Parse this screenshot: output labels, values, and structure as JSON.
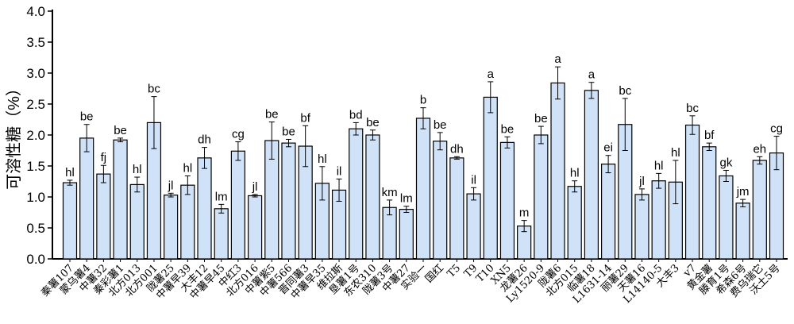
{
  "chart_data": {
    "type": "bar",
    "title": "",
    "xlabel": "",
    "ylabel": "可溶性糖（%）",
    "ylim": [
      0,
      4.0
    ],
    "yticks": [
      "0.0",
      "0.5",
      "1.0",
      "1.5",
      "2.0",
      "2.5",
      "3.0",
      "3.5",
      "4.0"
    ],
    "grid": false,
    "bar_color": "#cfe2f8",
    "categories": [
      "秦薯107",
      "蒙乌薯4",
      "中薯32",
      "秦彩薯1",
      "北方013",
      "北方001",
      "陇薯25",
      "中薯早39",
      "大丰12",
      "中薯早45",
      "中红3",
      "北方016",
      "中薯紫5",
      "中薯566",
      "晋同薯3",
      "中薯早35",
      "维拉斯",
      "垦薯1号",
      "东农310",
      "陇薯3号",
      "中薯27",
      "实验一",
      "国红",
      "T5",
      "T9",
      "T10",
      "XN5",
      "龙薯26",
      "Ly1520-9",
      "陇薯6",
      "北方015",
      "临薯18",
      "L1631-14",
      "丽薯29",
      "天薯16",
      "L14140-5",
      "大丰3",
      "v7",
      "黄金薯",
      "滕育1号",
      "希森6号",
      "费乌瑞它",
      "沃土5号"
    ],
    "values": [
      1.23,
      1.95,
      1.37,
      1.92,
      1.2,
      2.2,
      1.03,
      1.19,
      1.63,
      0.81,
      1.74,
      1.02,
      1.91,
      1.87,
      1.82,
      1.22,
      1.11,
      2.1,
      2.0,
      0.83,
      0.8,
      2.27,
      1.9,
      1.63,
      1.05,
      2.61,
      1.88,
      0.53,
      2.0,
      2.84,
      1.17,
      2.72,
      1.53,
      2.17,
      1.04,
      1.26,
      1.24,
      2.16,
      1.81,
      1.34,
      0.9,
      1.59,
      1.71
    ],
    "errors": [
      0.04,
      0.22,
      0.14,
      0.03,
      0.12,
      0.42,
      0.03,
      0.15,
      0.17,
      0.07,
      0.15,
      0.02,
      0.3,
      0.06,
      0.33,
      0.27,
      0.18,
      0.1,
      0.08,
      0.12,
      0.05,
      0.17,
      0.14,
      0.02,
      0.1,
      0.25,
      0.09,
      0.09,
      0.14,
      0.26,
      0.09,
      0.13,
      0.14,
      0.42,
      0.09,
      0.12,
      0.35,
      0.15,
      0.06,
      0.09,
      0.06,
      0.06,
      0.27
    ],
    "significance_labels": [
      "hl",
      "be",
      "fj",
      "be",
      "hl",
      "bc",
      "jl",
      "hl",
      "dh",
      "lm",
      "cg",
      "jl",
      "be",
      "be",
      "bf",
      "hl",
      "il",
      "bd",
      "be",
      "km",
      "lm",
      "b",
      "be",
      "dh",
      "il",
      "a",
      "be",
      "m",
      "be",
      "a",
      "hl",
      "a",
      "ei",
      "bc",
      "jl",
      "hl",
      "hl",
      "bc",
      "bf",
      "gk",
      "jm",
      "eh",
      "cg"
    ]
  }
}
